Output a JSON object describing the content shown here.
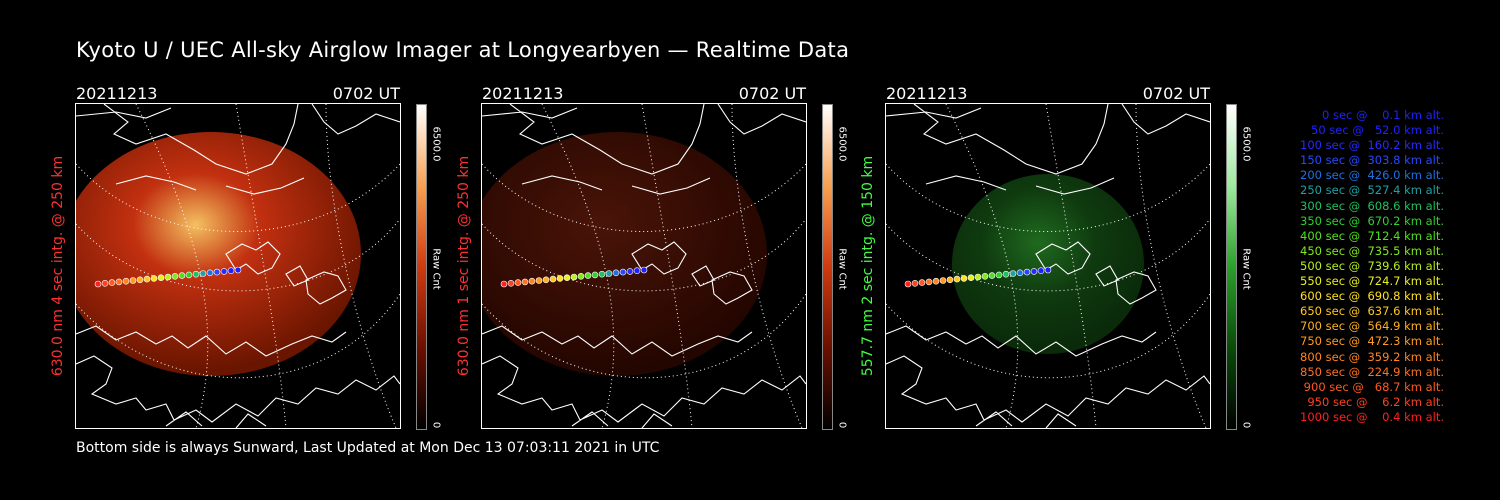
{
  "title": "Kyoto U / UEC All-sky Airglow Imager at Longyearbyen — Realtime Data",
  "footer": "Bottom side is always Sunward, Last Updated at Mon Dec 13 07:03:11 2021 in UTC",
  "panels": [
    {
      "date": "20211213",
      "time": "0702 UT",
      "label": "630.0 nm 4 sec intg. @ 250 km",
      "label_color": "#ff3030",
      "cbar_max": "6500.0",
      "cbar_unit": "Raw Cnt",
      "cbar_min": "0",
      "palette": "red",
      "brightness": "bright"
    },
    {
      "date": "20211213",
      "time": "0702 UT",
      "label": "630.0 nm 1 sec intg. @ 250 km",
      "label_color": "#ff3030",
      "cbar_max": "6500.0",
      "cbar_unit": "Raw Cnt",
      "cbar_min": "0",
      "palette": "red",
      "brightness": "dim"
    },
    {
      "date": "20211213",
      "time": "0702 UT",
      "label": "557.7 nm 2 sec intg. @ 150 km",
      "label_color": "#40ff40",
      "cbar_max": "6500.0",
      "cbar_unit": "Raw Cnt",
      "cbar_min": "0",
      "palette": "green",
      "brightness": "green"
    }
  ],
  "legend": [
    {
      "text": "   0 sec @    0.1 km alt.",
      "color": "#2020ff"
    },
    {
      "text": "  50 sec @   52.0 km alt.",
      "color": "#2020ff"
    },
    {
      "text": " 100 sec @  160.2 km alt.",
      "color": "#2828ff"
    },
    {
      "text": " 150 sec @  303.8 km alt.",
      "color": "#2848ff"
    },
    {
      "text": " 200 sec @  426.0 km alt.",
      "color": "#2070e0"
    },
    {
      "text": " 250 sec @  527.4 km alt.",
      "color": "#20a0a0"
    },
    {
      "text": " 300 sec @  608.6 km alt.",
      "color": "#20c060"
    },
    {
      "text": " 350 sec @  670.2 km alt.",
      "color": "#30d030"
    },
    {
      "text": " 400 sec @  712.4 km alt.",
      "color": "#50e020"
    },
    {
      "text": " 450 sec @  735.5 km alt.",
      "color": "#80e820"
    },
    {
      "text": " 500 sec @  739.6 km alt.",
      "color": "#b8f020"
    },
    {
      "text": " 550 sec @  724.7 km alt.",
      "color": "#e8f020"
    },
    {
      "text": " 600 sec @  690.8 km alt.",
      "color": "#ffe020"
    },
    {
      "text": " 650 sec @  637.6 km alt.",
      "color": "#ffc820"
    },
    {
      "text": " 700 sec @  564.9 km alt.",
      "color": "#ffb020"
    },
    {
      "text": " 750 sec @  472.3 km alt.",
      "color": "#ff9a20"
    },
    {
      "text": " 800 sec @  359.2 km alt.",
      "color": "#ff8420"
    },
    {
      "text": " 850 sec @  224.9 km alt.",
      "color": "#ff7020"
    },
    {
      "text": " 900 sec @   68.7 km alt.",
      "color": "#ff5820"
    },
    {
      "text": " 950 sec @    6.2 km alt.",
      "color": "#ff4020"
    },
    {
      "text": "1000 sec @    0.4 km alt.",
      "color": "#ff2020"
    }
  ]
}
